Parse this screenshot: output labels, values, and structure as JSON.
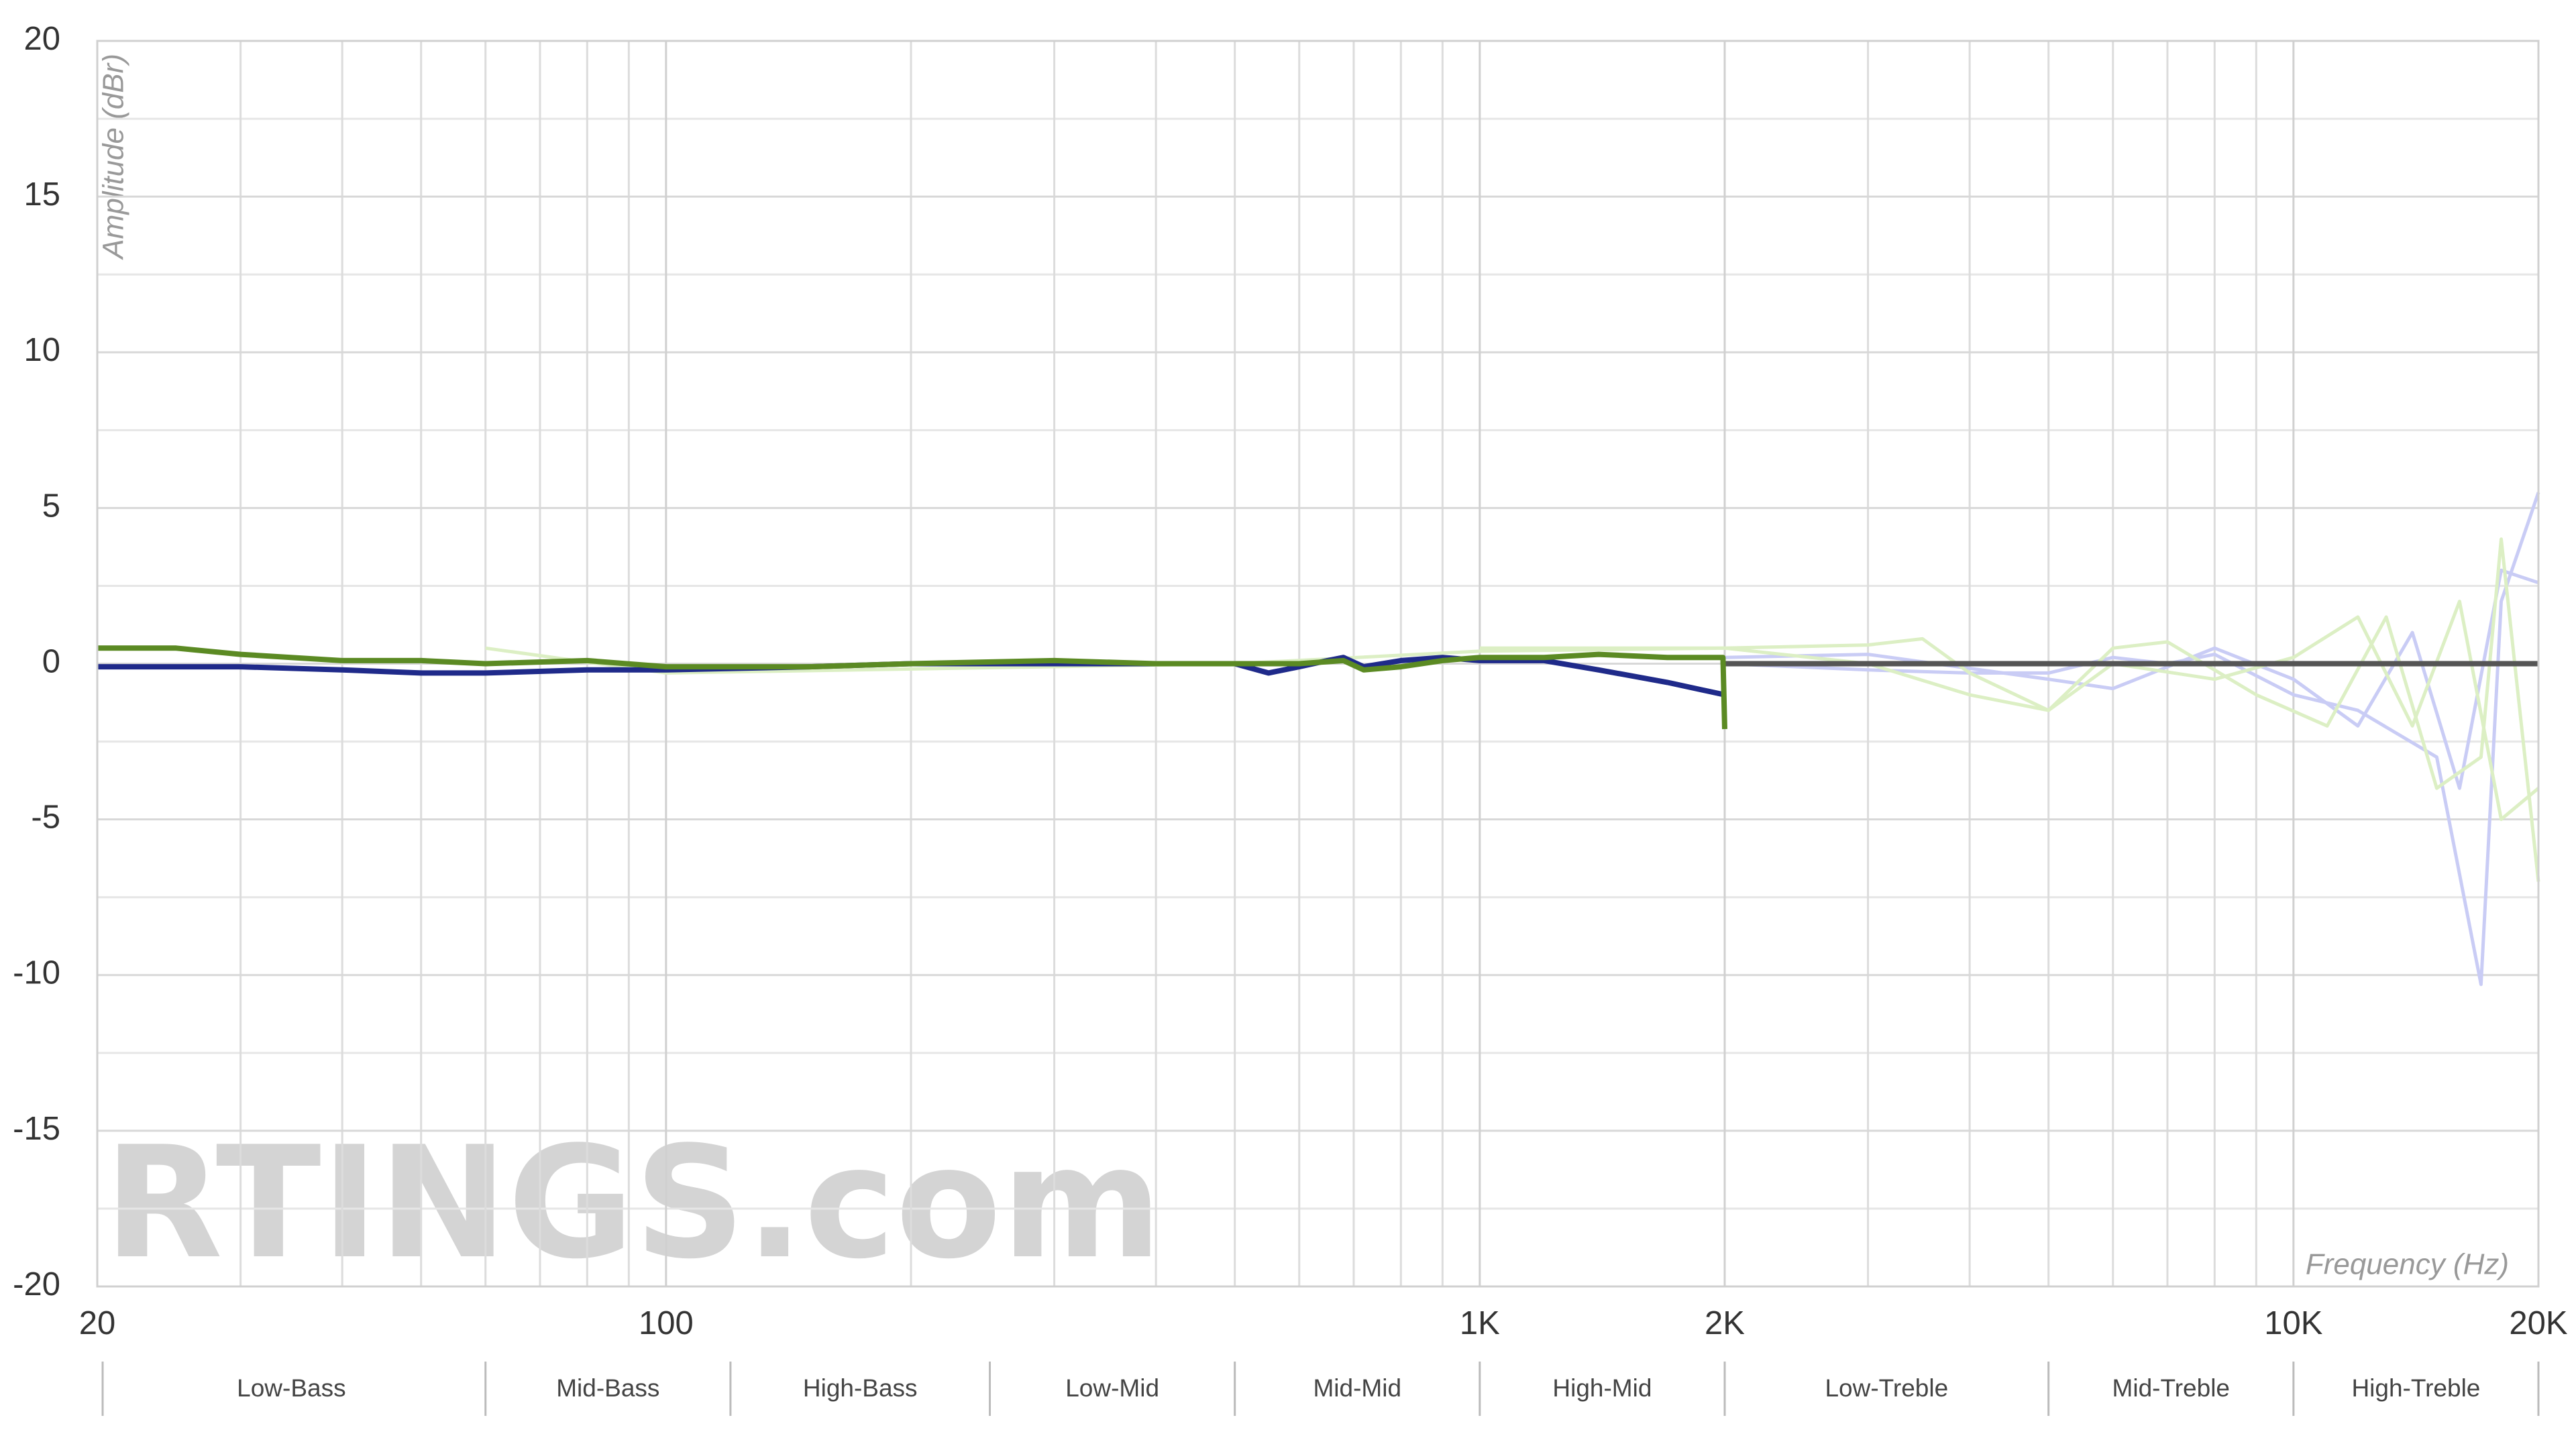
{
  "chart_data": {
    "type": "line",
    "watermark": "RTINGS.com",
    "y_label": "Amplitude (dBr)",
    "x_label": "Frequency (Hz)",
    "xscale": "log",
    "xlim": [
      20,
      20000
    ],
    "ylim": [
      -20,
      20
    ],
    "xticks": [
      20,
      100,
      {
        "value": 1000,
        "label": "1K"
      },
      {
        "value": 2000,
        "label": "2K"
      },
      {
        "value": 10000,
        "label": "10K"
      },
      {
        "value": 20000,
        "label": "20K"
      }
    ],
    "yticks": [
      -20,
      -15,
      -10,
      -5,
      0,
      5,
      10,
      15,
      20
    ],
    "xgrid_minor": [
      30,
      40,
      50,
      60,
      70,
      80,
      90,
      200,
      300,
      400,
      500,
      600,
      700,
      800,
      900,
      3000,
      4000,
      5000,
      6000,
      7000,
      8000,
      9000
    ],
    "ygrid_minor": [
      -17.5,
      -12.5,
      -7.5,
      -2.5,
      2.5,
      7.5,
      12.5,
      17.5
    ],
    "grid": true,
    "band_edges": [
      20,
      60,
      120,
      250,
      500,
      1000,
      2000,
      5000,
      10000,
      20000
    ],
    "band_labels": [
      "Low-Bass",
      "Mid-Bass",
      "High-Bass",
      "Low-Mid",
      "Mid-Mid",
      "High-Mid",
      "Low-Treble",
      "Mid-Treble",
      "High-Treble"
    ],
    "series": [
      {
        "color": "#c9ccf5",
        "x": [
          2000,
          3000,
          4000,
          5000,
          6000,
          7000,
          8000,
          10000,
          12000,
          15000,
          17000,
          18000,
          20000
        ],
        "values": [
          0,
          -0.2,
          -0.3,
          -0.3,
          0.2,
          0,
          0.3,
          -1,
          -1.5,
          -3,
          -10.3,
          2,
          5.5
        ]
      },
      {
        "color": "#c9ccf5",
        "x": [
          2000,
          3000,
          5000,
          6000,
          8000,
          10000,
          12000,
          14000,
          16000,
          18000,
          20000
        ],
        "values": [
          0.2,
          0.3,
          -0.5,
          -0.8,
          0.5,
          -0.5,
          -2,
          1,
          -4,
          3,
          2.6
        ]
      },
      {
        "color": "#dcefc4",
        "x": [
          1000,
          2000,
          3000,
          3500,
          4000,
          5000,
          6000,
          7000,
          9000,
          11000,
          13000,
          15000,
          17000,
          18000,
          20000
        ],
        "values": [
          0.5,
          0.5,
          0.6,
          0.8,
          -0.3,
          -1.5,
          0.5,
          0.7,
          -1,
          -2,
          1.5,
          -4,
          -3,
          4,
          -7
        ]
      },
      {
        "color": "#dcefc4",
        "x": [
          60,
          100,
          500,
          1000,
          2000,
          3000,
          4000,
          5000,
          6000,
          8000,
          10000,
          12000,
          14000,
          16000,
          18000,
          20000
        ],
        "values": [
          0.5,
          -0.3,
          0,
          0.4,
          0.5,
          0,
          -1,
          -1.5,
          0,
          -0.5,
          0.2,
          1.5,
          -2,
          2,
          -5,
          -4
        ]
      },
      {
        "color": "#555555",
        "x": [
          2000,
          20000
        ],
        "values": [
          0,
          0
        ]
      },
      {
        "color": "#1f2a8a",
        "x": [
          20,
          30,
          40,
          50,
          60,
          80,
          100,
          150,
          200,
          300,
          400,
          500,
          550,
          600,
          650,
          680,
          720,
          800,
          900,
          1000,
          1200,
          1400,
          1700,
          2000
        ],
        "values": [
          -0.1,
          -0.1,
          -0.2,
          -0.3,
          -0.3,
          -0.2,
          -0.2,
          -0.1,
          0,
          0,
          0,
          0,
          -0.3,
          -0.1,
          0.1,
          0.2,
          -0.1,
          0.1,
          0.2,
          0.1,
          0.1,
          -0.2,
          -0.6,
          -1.0
        ]
      },
      {
        "color": "#5b8a23",
        "x": [
          20,
          25,
          30,
          40,
          50,
          60,
          80,
          100,
          150,
          200,
          300,
          400,
          500,
          600,
          680,
          720,
          800,
          900,
          1000,
          1200,
          1400,
          1700,
          1990,
          2000
        ],
        "values": [
          0.5,
          0.5,
          0.3,
          0.1,
          0.1,
          0,
          0.1,
          -0.1,
          -0.1,
          0,
          0.1,
          0,
          0,
          0,
          0.1,
          -0.2,
          -0.1,
          0.1,
          0.2,
          0.2,
          0.3,
          0.2,
          0.2,
          -2.1
        ]
      }
    ]
  }
}
